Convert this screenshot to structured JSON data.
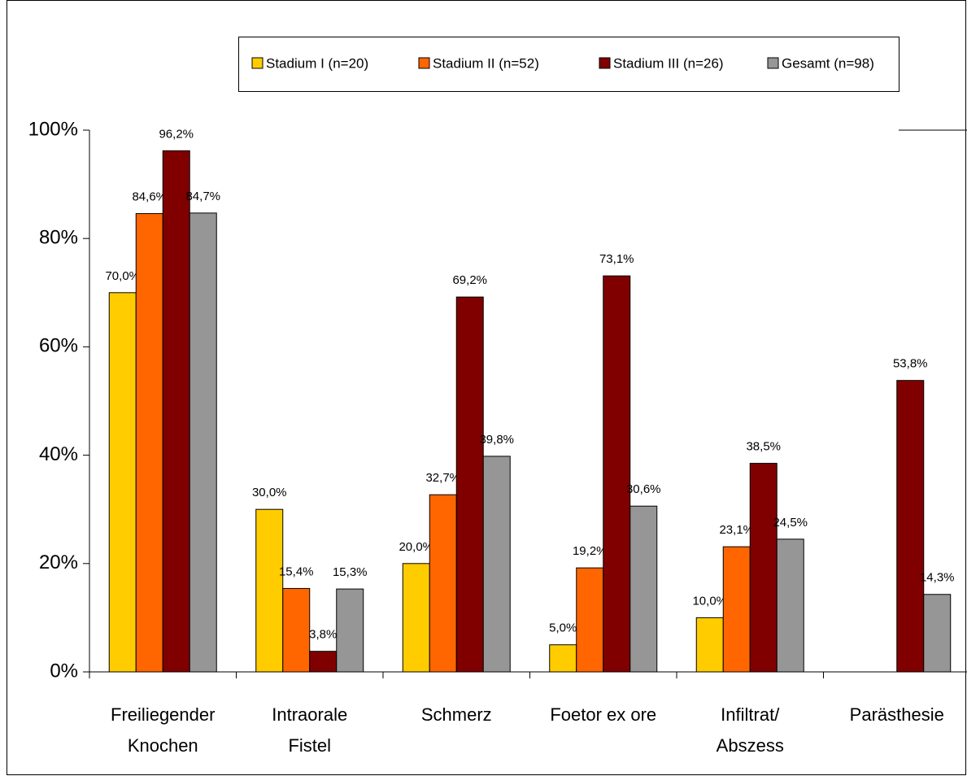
{
  "chart_data": {
    "type": "bar",
    "categories": [
      [
        "Freiliegender",
        "Knochen"
      ],
      [
        "Intraorale",
        "Fistel"
      ],
      [
        "Schmerz"
      ],
      [
        "Foetor ex ore"
      ],
      [
        "Infiltrat/",
        "Abszess"
      ],
      [
        "Parästhesie"
      ]
    ],
    "series": [
      {
        "name": "Stadium I (n=20)",
        "color": "#ffcc00",
        "values": [
          70.0,
          30.0,
          20.0,
          5.0,
          10.0,
          null
        ],
        "value_labels": [
          "70,0%",
          "30,0%",
          "20,0%",
          "5,0%",
          "10,0%",
          null
        ]
      },
      {
        "name": "Stadium II (n=52)",
        "color": "#ff6600",
        "values": [
          84.6,
          15.4,
          32.7,
          19.2,
          23.1,
          null
        ],
        "value_labels": [
          "84,6%",
          "15,4%",
          "32,7%",
          "19,2%",
          "23,1%",
          null
        ]
      },
      {
        "name": "Stadium III (n=26)",
        "color": "#800000",
        "values": [
          96.2,
          3.8,
          69.2,
          73.1,
          38.5,
          53.8
        ],
        "value_labels": [
          "96,2%",
          "3,8%",
          "69,2%",
          "73,1%",
          "38,5%",
          "53,8%"
        ]
      },
      {
        "name": "Gesamt (n=98)",
        "color": "#969696",
        "values": [
          84.7,
          15.3,
          39.8,
          30.6,
          24.5,
          14.3
        ],
        "value_labels": [
          "84,7%",
          "15,3%",
          "39,8%",
          "30,6%",
          "24,5%",
          "14,3%"
        ]
      }
    ],
    "ylim": [
      0,
      100
    ],
    "yticks": [
      {
        "value": 0,
        "label": "0%"
      },
      {
        "value": 20,
        "label": "20%"
      },
      {
        "value": 40,
        "label": "40%"
      },
      {
        "value": 60,
        "label": "60%"
      },
      {
        "value": 80,
        "label": "80%"
      },
      {
        "value": 100,
        "label": "100%"
      }
    ],
    "legend": "top"
  }
}
